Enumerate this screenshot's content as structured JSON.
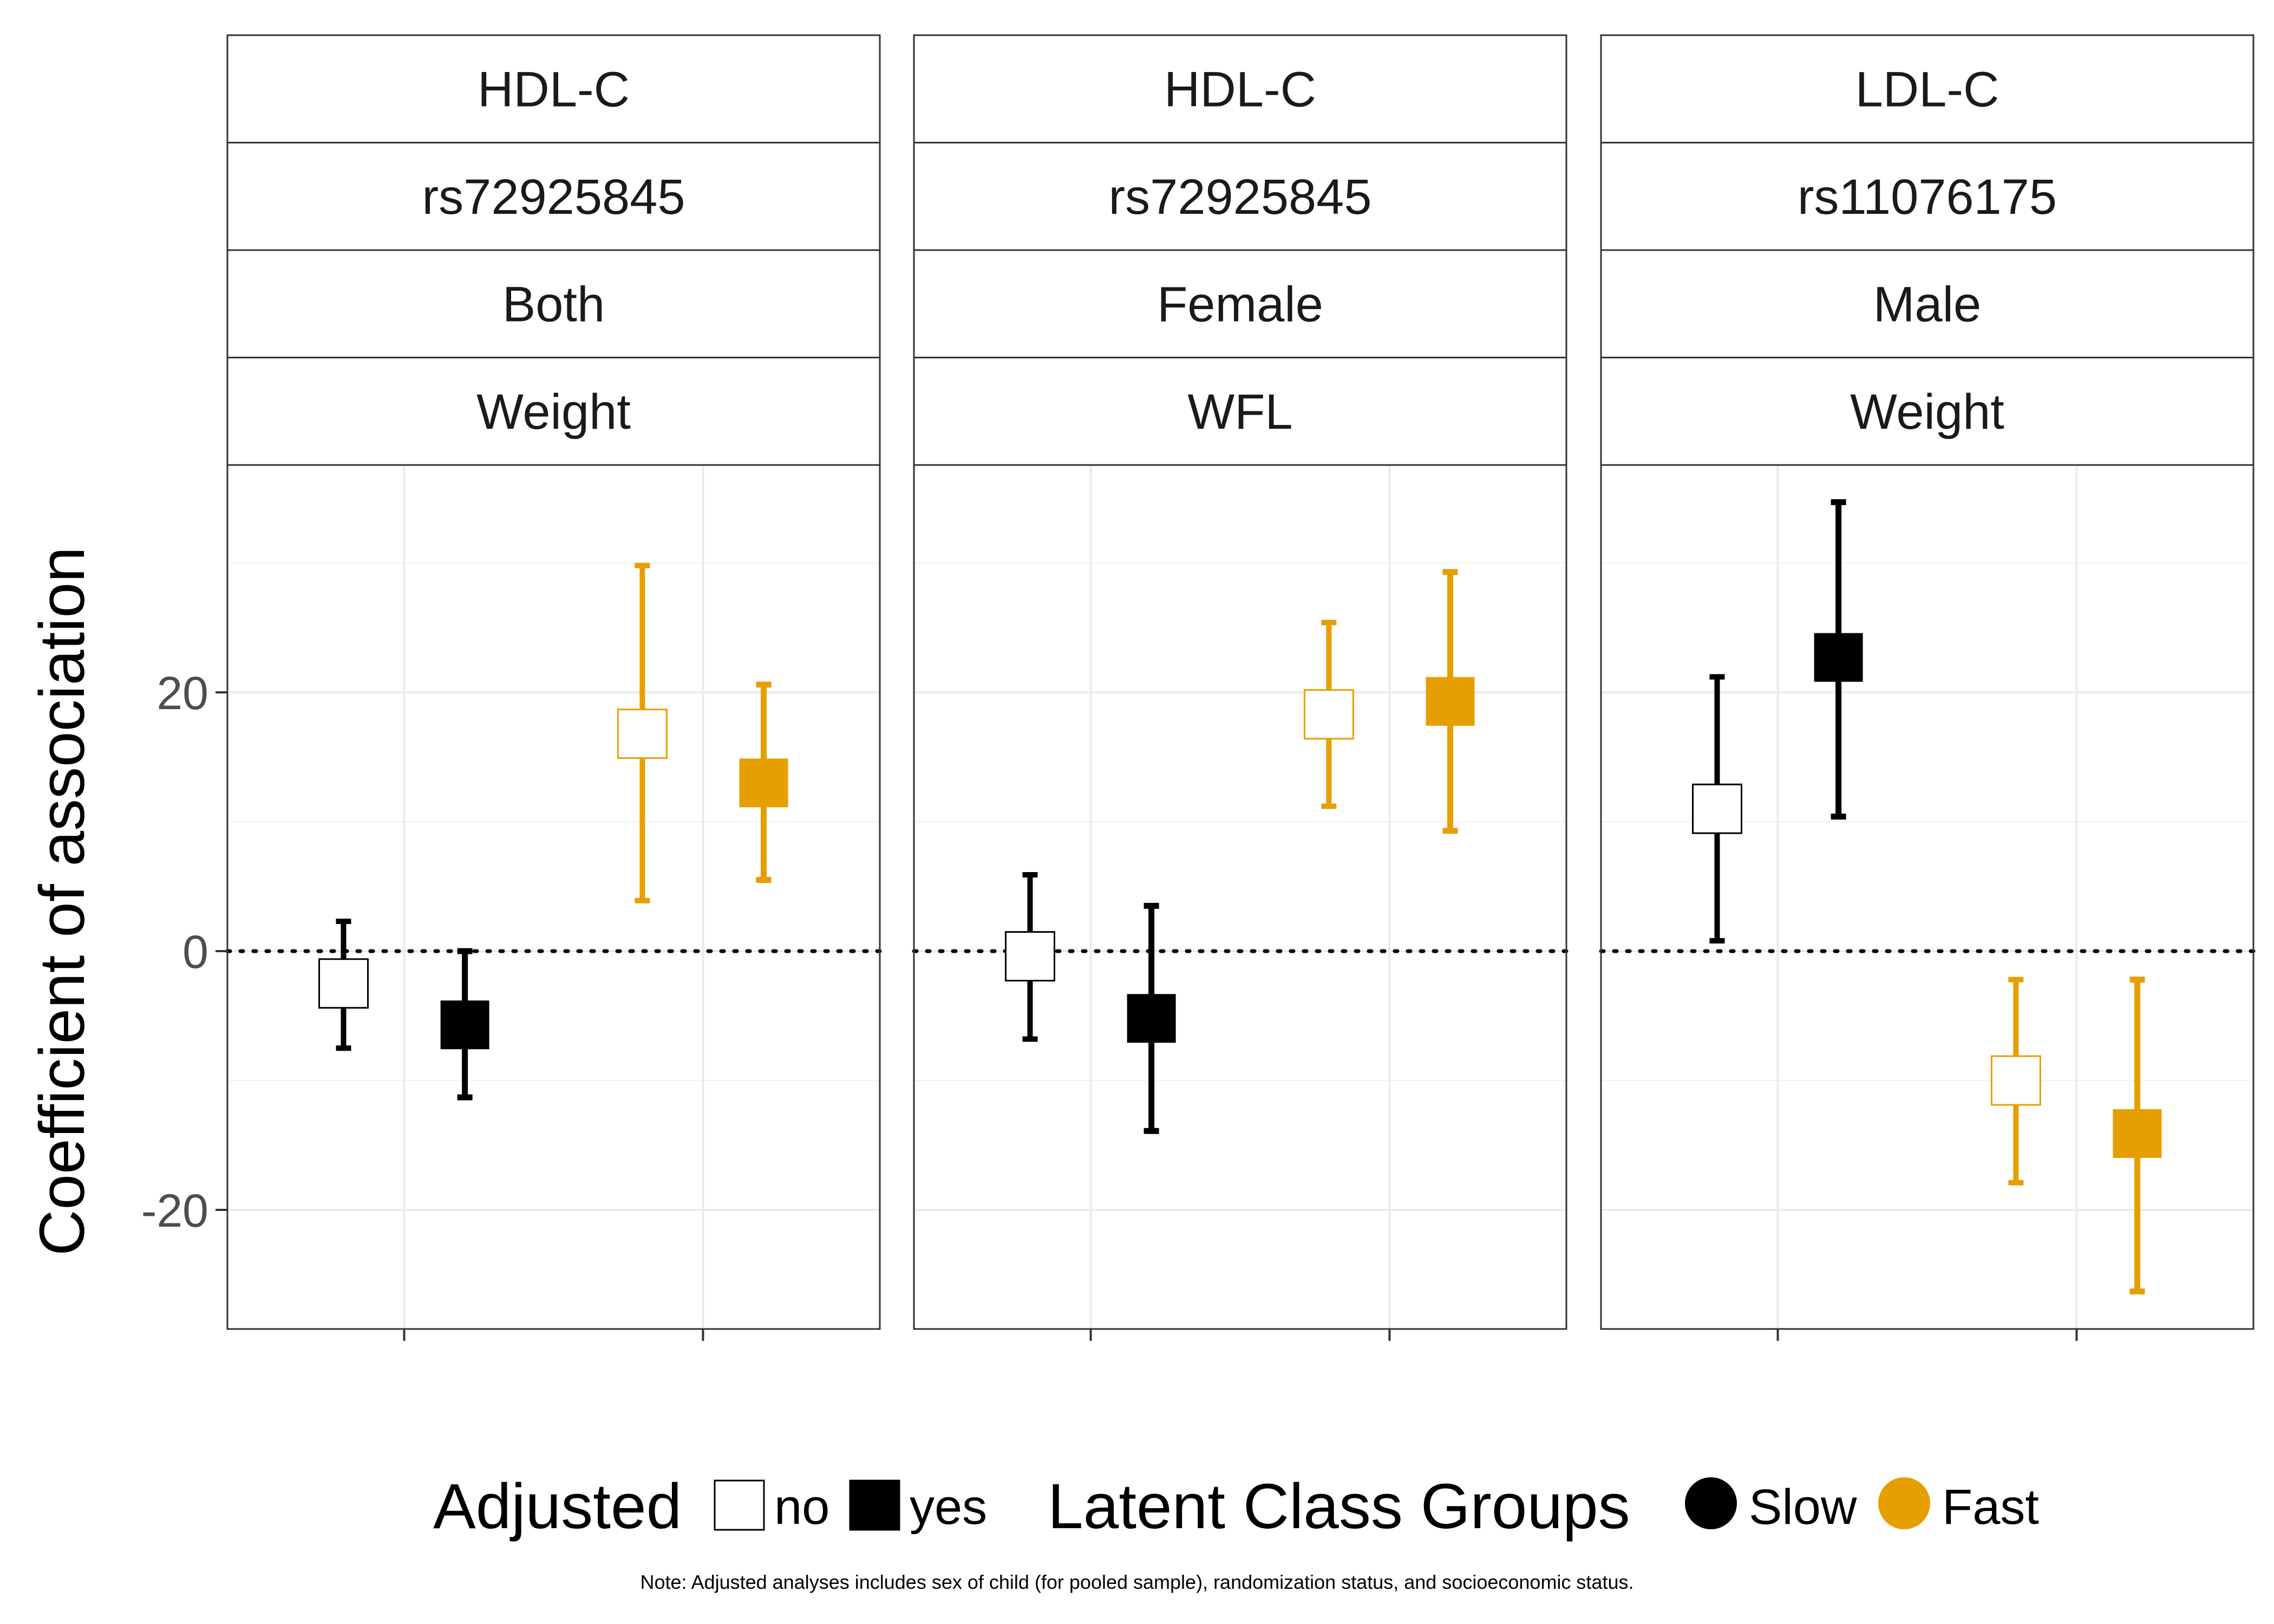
{
  "chart_data": {
    "type": "scatter",
    "ylabel": "Coefficient of association",
    "xlabel": "",
    "ylim": [
      -29,
      37
    ],
    "y_ticks": [
      -20,
      0,
      20
    ],
    "y_tick_labels": [
      "-20",
      "0",
      "20"
    ],
    "reference_line": {
      "y": 0,
      "style": "dotted"
    },
    "grid": true,
    "legend_position": "bottom",
    "colors": {
      "Slow": "#000000",
      "Fast": "#E69F00"
    },
    "legend": {
      "adjusted_title": "Adjusted",
      "adjusted_items": [
        {
          "label": "no",
          "fill": "open"
        },
        {
          "label": "yes",
          "fill": "filled"
        }
      ],
      "groups_title": "Latent Class Groups",
      "groups_items": [
        {
          "label": "Slow",
          "color": "#000000"
        },
        {
          "label": "Fast",
          "color": "#E69F00"
        }
      ]
    },
    "note": "Note: Adjusted analyses includes sex of child (for pooled sample), randomization status, and socioeconomic status.",
    "panels": [
      {
        "strips": [
          "HDL-C",
          "rs72925845",
          "Both",
          "Weight"
        ],
        "points": [
          {
            "group": "Slow",
            "adjusted": "no",
            "estimate": -2.5,
            "lower": -7.5,
            "upper": 2.3
          },
          {
            "group": "Slow",
            "adjusted": "yes",
            "estimate": -5.7,
            "lower": -11.3,
            "upper": 0.0
          },
          {
            "group": "Fast",
            "adjusted": "no",
            "estimate": 16.8,
            "lower": 3.9,
            "upper": 29.8
          },
          {
            "group": "Fast",
            "adjusted": "yes",
            "estimate": 13.0,
            "lower": 5.5,
            "upper": 20.6
          }
        ]
      },
      {
        "strips": [
          "HDL-C",
          "rs72925845",
          "Female",
          "WFL"
        ],
        "points": [
          {
            "group": "Slow",
            "adjusted": "no",
            "estimate": -0.4,
            "lower": -6.8,
            "upper": 5.9
          },
          {
            "group": "Slow",
            "adjusted": "yes",
            "estimate": -5.2,
            "lower": -13.9,
            "upper": 3.5
          },
          {
            "group": "Fast",
            "adjusted": "no",
            "estimate": 18.3,
            "lower": 11.2,
            "upper": 25.4
          },
          {
            "group": "Fast",
            "adjusted": "yes",
            "estimate": 19.3,
            "lower": 9.3,
            "upper": 29.3
          }
        ]
      },
      {
        "strips": [
          "LDL-C",
          "rs11076175",
          "Male",
          "Weight"
        ],
        "points": [
          {
            "group": "Slow",
            "adjusted": "no",
            "estimate": 11.0,
            "lower": 0.8,
            "upper": 21.2
          },
          {
            "group": "Slow",
            "adjusted": "yes",
            "estimate": 22.7,
            "lower": 10.4,
            "upper": 34.7
          },
          {
            "group": "Fast",
            "adjusted": "no",
            "estimate": -10.0,
            "lower": -17.9,
            "upper": -2.2
          },
          {
            "group": "Fast",
            "adjusted": "yes",
            "estimate": -14.1,
            "lower": -26.3,
            "upper": -2.2
          }
        ]
      }
    ]
  }
}
